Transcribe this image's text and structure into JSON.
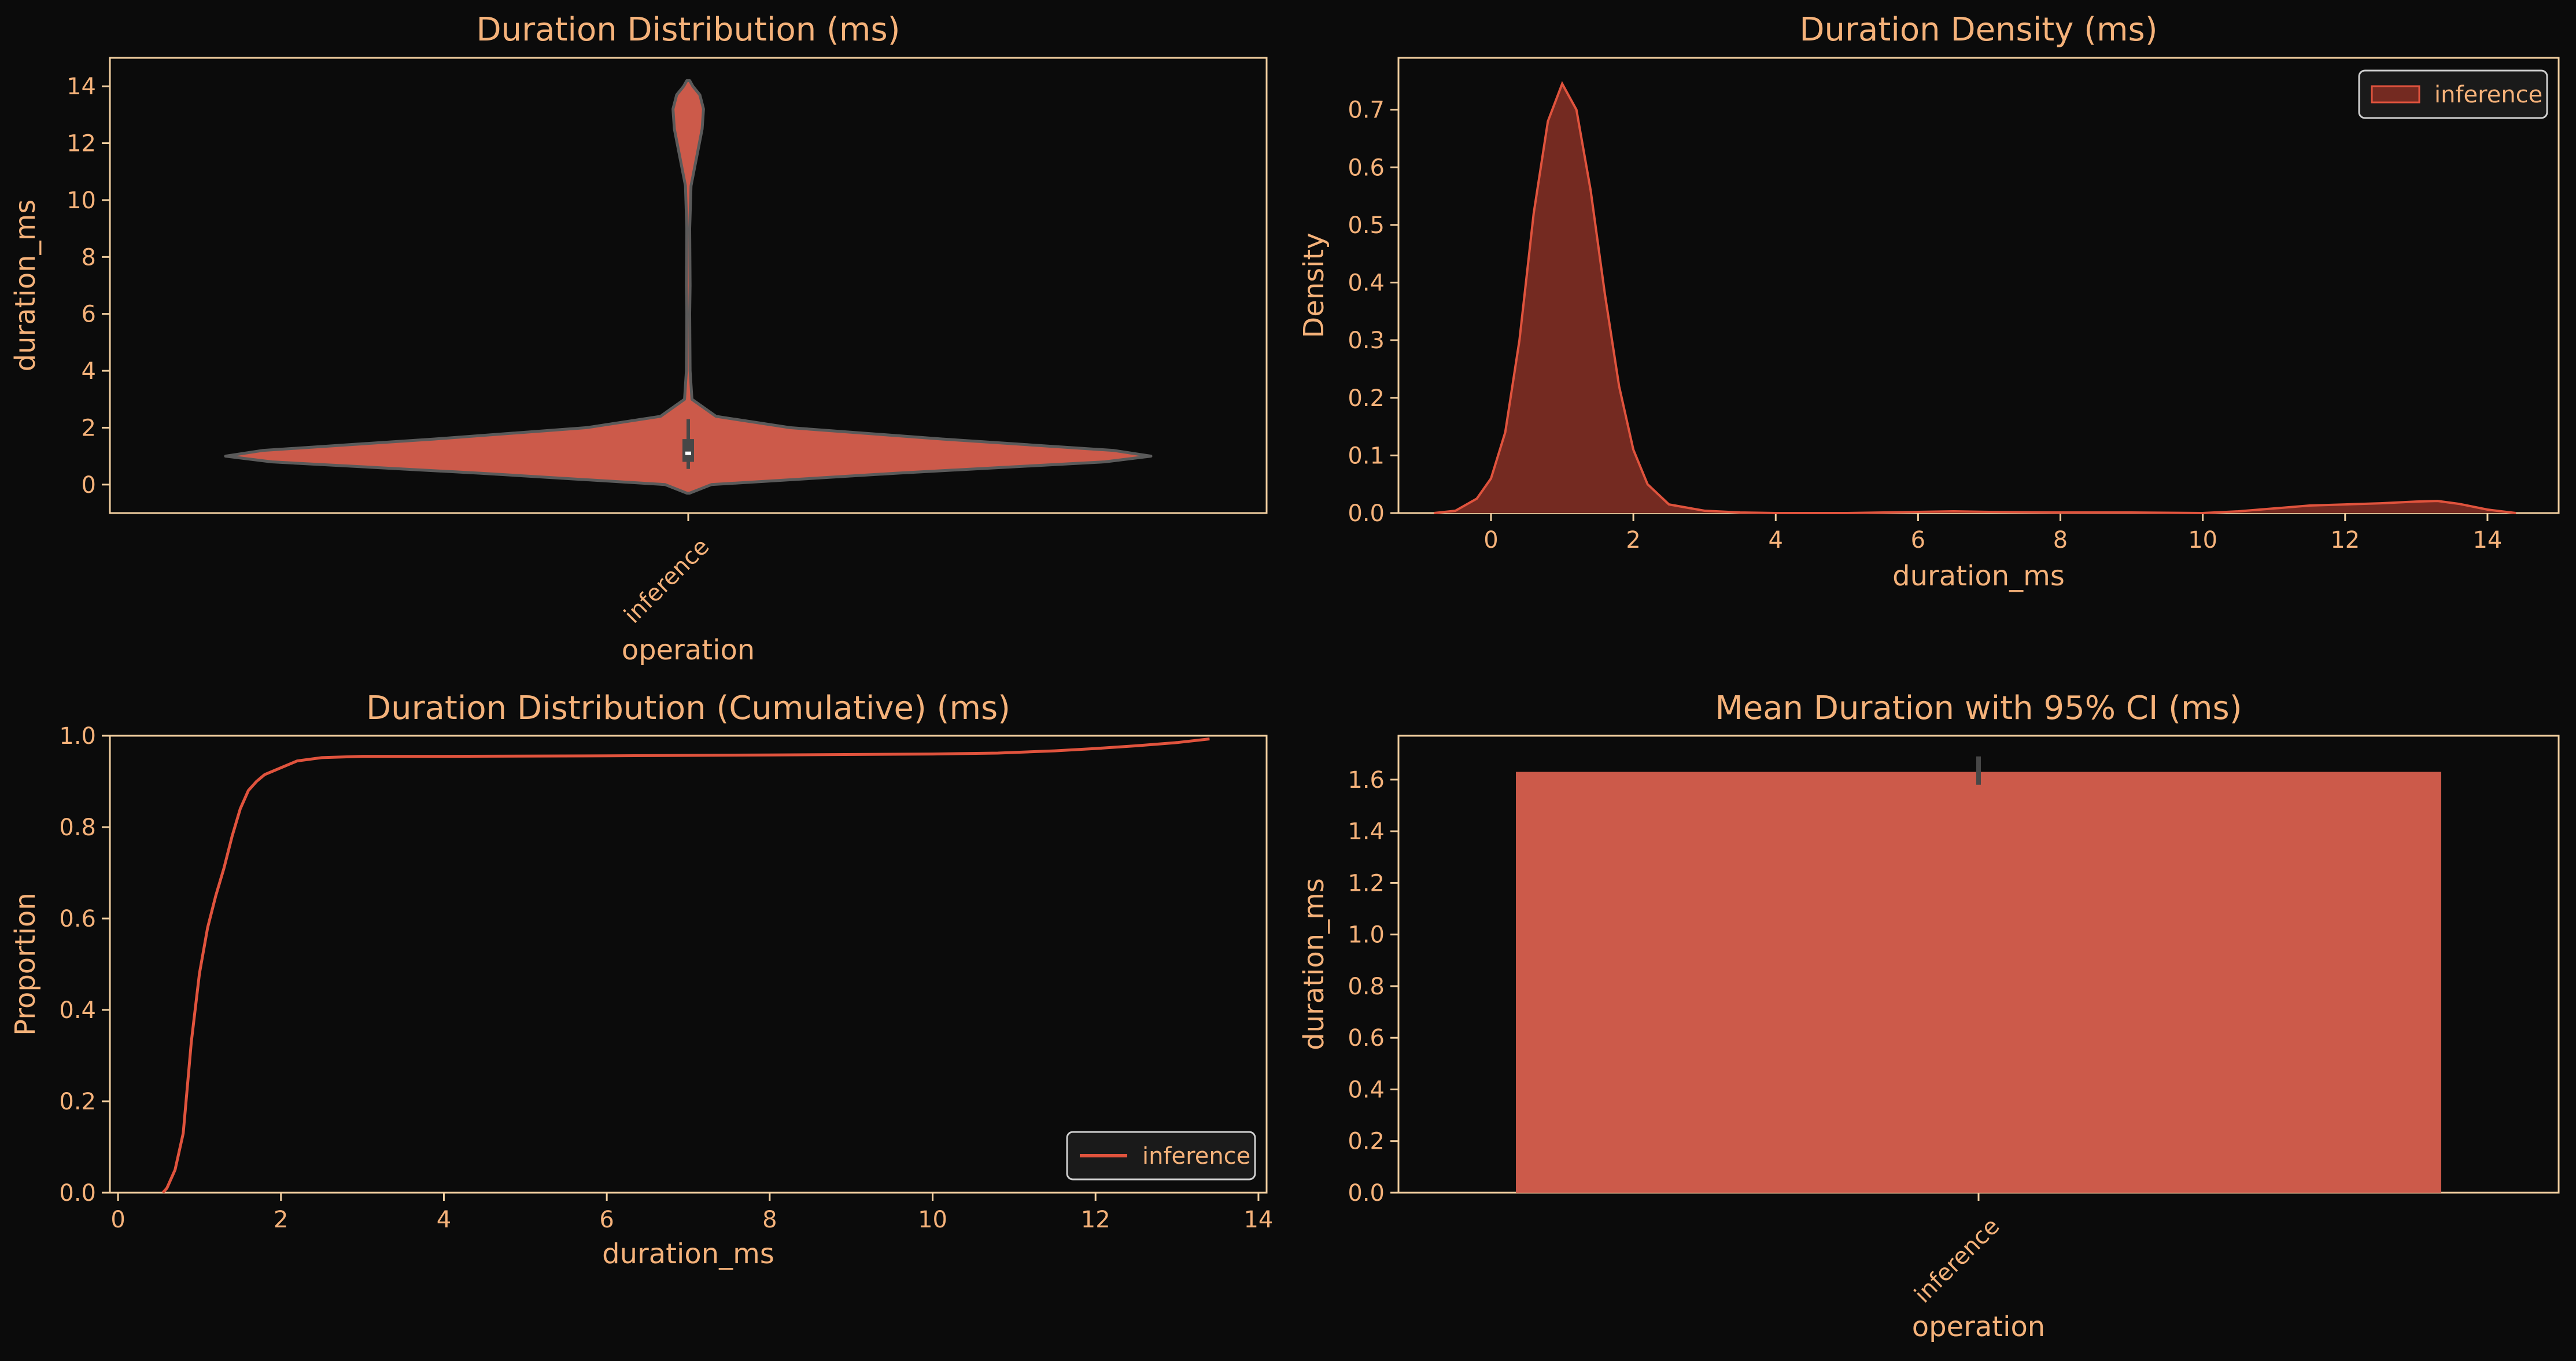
{
  "theme": {
    "background": "#0b0b0b",
    "text": "#f5b27a",
    "spine": "#f2cfa0",
    "accent": "#cc5a4a",
    "line": "#e0533d",
    "kde_fill": "#742a21",
    "outline": "#5a5a5a",
    "legend_text": "#f5b27a"
  },
  "chart_data": [
    {
      "id": "violin",
      "type": "violin",
      "title": "Duration Distribution (ms)",
      "xlabel": "operation",
      "ylabel": "duration_ms",
      "categories": [
        "inference"
      ],
      "ylim": [
        -1,
        15
      ],
      "yticks": [
        0,
        2,
        4,
        6,
        8,
        10,
        12,
        14
      ],
      "grid": false,
      "density_profile": [
        [
          -0.3,
          0.0
        ],
        [
          0.0,
          0.05
        ],
        [
          0.4,
          0.45
        ],
        [
          0.8,
          0.9
        ],
        [
          1.0,
          1.0
        ],
        [
          1.2,
          0.92
        ],
        [
          1.6,
          0.55
        ],
        [
          2.0,
          0.22
        ],
        [
          2.4,
          0.06
        ],
        [
          3.0,
          0.008
        ],
        [
          4.0,
          0.004
        ],
        [
          6.0,
          0.003
        ],
        [
          7.0,
          0.004
        ],
        [
          9.0,
          0.003
        ],
        [
          10.5,
          0.006
        ],
        [
          11.5,
          0.018
        ],
        [
          12.5,
          0.03
        ],
        [
          13.2,
          0.033
        ],
        [
          13.7,
          0.025
        ],
        [
          14.0,
          0.01
        ],
        [
          14.2,
          0.0
        ]
      ],
      "box": {
        "q1": 0.8,
        "median": 1.1,
        "q3": 1.6,
        "whisker_low": 0.55,
        "whisker_high": 2.3
      }
    },
    {
      "id": "kde",
      "type": "area",
      "title": "Duration Density (ms)",
      "xlabel": "duration_ms",
      "ylabel": "Density",
      "xlim": [
        -1.3,
        15.0
      ],
      "ylim": [
        0,
        0.79
      ],
      "xticks": [
        0,
        2,
        4,
        6,
        8,
        10,
        12,
        14
      ],
      "yticks": [
        0.0,
        0.1,
        0.2,
        0.3,
        0.4,
        0.5,
        0.6,
        0.7
      ],
      "grid": false,
      "legend_position": "upper-right",
      "series": [
        {
          "name": "inference",
          "x": [
            -0.8,
            -0.5,
            -0.2,
            0.0,
            0.2,
            0.4,
            0.6,
            0.8,
            1.0,
            1.2,
            1.4,
            1.6,
            1.8,
            2.0,
            2.2,
            2.5,
            3.0,
            3.5,
            4.0,
            5.0,
            6.0,
            6.5,
            7.0,
            8.0,
            9.0,
            10.0,
            10.5,
            11.0,
            11.5,
            12.0,
            12.5,
            13.0,
            13.3,
            13.6,
            14.0,
            14.4
          ],
          "y": [
            0.0,
            0.004,
            0.025,
            0.06,
            0.14,
            0.3,
            0.52,
            0.68,
            0.745,
            0.7,
            0.56,
            0.38,
            0.22,
            0.11,
            0.05,
            0.015,
            0.004,
            0.001,
            0.0,
            0.0,
            0.002,
            0.003,
            0.002,
            0.001,
            0.001,
            0.0,
            0.003,
            0.008,
            0.013,
            0.015,
            0.017,
            0.02,
            0.021,
            0.016,
            0.006,
            0.0
          ]
        }
      ]
    },
    {
      "id": "ecdf",
      "type": "line",
      "title": "Duration Distribution (Cumulative) (ms)",
      "xlabel": "duration_ms",
      "ylabel": "Proportion",
      "xlim": [
        -0.1,
        14.1
      ],
      "ylim": [
        0.0,
        1.0
      ],
      "xticks": [
        0,
        2,
        4,
        6,
        8,
        10,
        12,
        14
      ],
      "yticks": [
        0.0,
        0.2,
        0.4,
        0.6,
        0.8,
        1.0
      ],
      "grid": false,
      "legend_position": "lower-right",
      "series": [
        {
          "name": "inference",
          "x": [
            0.55,
            0.6,
            0.7,
            0.8,
            0.9,
            1.0,
            1.1,
            1.2,
            1.3,
            1.4,
            1.5,
            1.6,
            1.7,
            1.8,
            2.0,
            2.2,
            2.5,
            3.0,
            4.0,
            6.0,
            8.0,
            10.0,
            10.8,
            11.5,
            12.0,
            12.5,
            13.0,
            13.4
          ],
          "y": [
            0.0,
            0.01,
            0.05,
            0.13,
            0.33,
            0.48,
            0.58,
            0.65,
            0.71,
            0.78,
            0.84,
            0.88,
            0.9,
            0.915,
            0.93,
            0.945,
            0.952,
            0.955,
            0.955,
            0.956,
            0.958,
            0.96,
            0.962,
            0.967,
            0.972,
            0.978,
            0.985,
            0.993
          ]
        }
      ]
    },
    {
      "id": "bar",
      "type": "bar",
      "title": "Mean Duration with 95% CI (ms)",
      "xlabel": "operation",
      "ylabel": "duration_ms",
      "categories": [
        "inference"
      ],
      "values": [
        1.63
      ],
      "ci": [
        [
          1.58,
          1.69
        ]
      ],
      "ylim": [
        0.0,
        1.77
      ],
      "yticks": [
        0.0,
        0.2,
        0.4,
        0.6,
        0.8,
        1.0,
        1.2,
        1.4,
        1.6
      ],
      "grid": false
    }
  ]
}
